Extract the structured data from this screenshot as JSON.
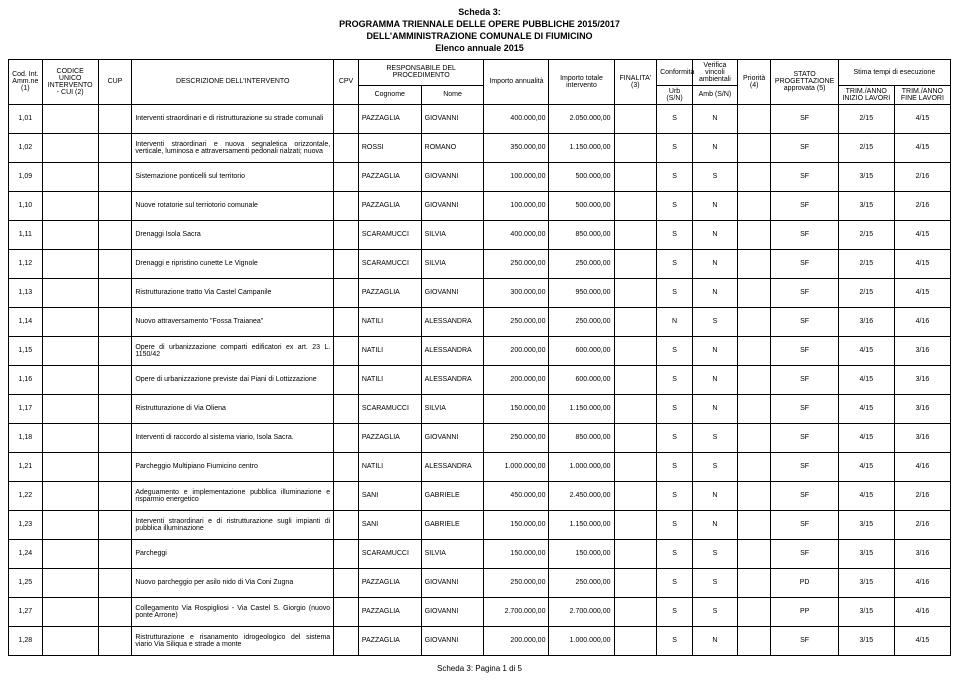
{
  "title": {
    "l1": "Scheda 3:",
    "l2": "PROGRAMMA TRIENNALE DELLE OPERE PUBBLICHE 2015/2017",
    "l3": "DELL'AMMINISTRAZIONE COMUNALE DI FIUMICINO",
    "l4": "Elenco annuale 2015"
  },
  "headers": {
    "cod": "Cod. Int. Amm.ne (1)",
    "unico": "CODICE UNICO INTERVENTO - CUI (2)",
    "cup": "CUP",
    "desc": "DESCRIZIONE DELL'INTERVENTO",
    "cpv": "CPV",
    "resp": "RESPONSABILE DEL PROCEDIMENTO",
    "cognome": "Cognome",
    "nome": "Nome",
    "ann": "Importo annualità",
    "tot": "Importo totale intervento",
    "fin": "FINALITA' (3)",
    "conf": "Conformità",
    "urb": "Urb (S/N)",
    "amb": "Amb (S/N)",
    "ver": "Verifica vincoli ambientali",
    "pri": "Priorità (4)",
    "stato": "STATO PROGETTAZIONE approvata (5)",
    "stima": "Stima tempi di esecuzione",
    "inizio": "TRIM./ANNO INIZIO LAVORI",
    "fine": "TRIM./ANNO FINE LAVORI"
  },
  "rows": [
    {
      "cod": "1,01",
      "desc": "Interventi straordinari e di ristrutturazione su strade comunali",
      "cog": "PAZZAGLIA",
      "nom": "GIOVANNI",
      "ann": "400.000,00",
      "tot": "2.050.000,00",
      "urb": "S",
      "amb": "N",
      "sta": "SF",
      "ini": "2/15",
      "fin": "4/15"
    },
    {
      "cod": "1,02",
      "desc": "Interventi straordinari e nuova segnaletica orizzontale, verticale, luminosa e attraversamenti pedonali rialzati; nuova",
      "cog": "ROSSI",
      "nom": "ROMANO",
      "ann": "350.000,00",
      "tot": "1.150.000,00",
      "urb": "S",
      "amb": "N",
      "sta": "SF",
      "ini": "2/15",
      "fin": "4/15"
    },
    {
      "cod": "1,09",
      "desc": "Sistemazione ponticelli sul territorio",
      "cog": "PAZZAGLIA",
      "nom": "GIOVANNI",
      "ann": "100.000,00",
      "tot": "500.000,00",
      "urb": "S",
      "amb": "S",
      "sta": "SF",
      "ini": "3/15",
      "fin": "2/16"
    },
    {
      "cod": "1,10",
      "desc": "Nuove rotatorie sul terriotorio comunale",
      "cog": "PAZZAGLIA",
      "nom": "GIOVANNI",
      "ann": "100.000,00",
      "tot": "500.000,00",
      "urb": "S",
      "amb": "N",
      "sta": "SF",
      "ini": "3/15",
      "fin": "2/16"
    },
    {
      "cod": "1,11",
      "desc": "Drenaggi Isola Sacra",
      "cog": "SCARAMUCCI",
      "nom": "SILVIA",
      "ann": "400.000,00",
      "tot": "850.000,00",
      "urb": "S",
      "amb": "N",
      "sta": "SF",
      "ini": "2/15",
      "fin": "4/15"
    },
    {
      "cod": "1,12",
      "desc": "Drenaggi e ripristino cunette Le Vignole",
      "cog": "SCARAMUCCI",
      "nom": "SILVIA",
      "ann": "250.000,00",
      "tot": "250.000,00",
      "urb": "S",
      "amb": "N",
      "sta": "SF",
      "ini": "2/15",
      "fin": "4/15"
    },
    {
      "cod": "1,13",
      "desc": "Ristrutturazione tratto Via Castel Campanile",
      "cog": "PAZZAGLIA",
      "nom": "GIOVANNI",
      "ann": "300.000,00",
      "tot": "950.000,00",
      "urb": "S",
      "amb": "N",
      "sta": "SF",
      "ini": "2/15",
      "fin": "4/15"
    },
    {
      "cod": "1,14",
      "desc": "Nuovo attraversamento \"Fossa Traianea\"",
      "cog": "NATILI",
      "nom": "ALESSANDRA",
      "ann": "250.000,00",
      "tot": "250.000,00",
      "urb": "N",
      "amb": "S",
      "sta": "SF",
      "ini": "3/16",
      "fin": "4/16"
    },
    {
      "cod": "1,15",
      "desc": "Opere di urbanizzazione comparti edificatori ex art. 23 L. 1150/42",
      "cog": "NATILI",
      "nom": "ALESSANDRA",
      "ann": "200.000,00",
      "tot": "600.000,00",
      "urb": "S",
      "amb": "N",
      "sta": "SF",
      "ini": "4/15",
      "fin": "3/16"
    },
    {
      "cod": "1,16",
      "desc": "Opere di urbanizzazione previste dai Piani di Lottizzazione",
      "cog": "NATILI",
      "nom": "ALESSANDRA",
      "ann": "200.000,00",
      "tot": "600.000,00",
      "urb": "S",
      "amb": "N",
      "sta": "SF",
      "ini": "4/15",
      "fin": "3/16"
    },
    {
      "cod": "1,17",
      "desc": "Ristrutturazione di Via Oliena",
      "cog": "SCARAMUCCI",
      "nom": "SILVIA",
      "ann": "150.000,00",
      "tot": "1.150.000,00",
      "urb": "S",
      "amb": "N",
      "sta": "SF",
      "ini": "4/15",
      "fin": "3/16"
    },
    {
      "cod": "1,18",
      "desc": "Interventi di raccordo al sistema viario, Isola Sacra.",
      "cog": "PAZZAGLIA",
      "nom": "GIOVANNI",
      "ann": "250.000,00",
      "tot": "850.000,00",
      "urb": "S",
      "amb": "S",
      "sta": "SF",
      "ini": "4/15",
      "fin": "3/16"
    },
    {
      "cod": "1,21",
      "desc": "Parcheggio Multipiano Fiumicino centro",
      "cog": "NATILI",
      "nom": "ALESSANDRA",
      "ann": "1.000.000,00",
      "tot": "1.000.000,00",
      "urb": "S",
      "amb": "S",
      "sta": "SF",
      "ini": "4/15",
      "fin": "4/16"
    },
    {
      "cod": "1,22",
      "desc": "Adeguamento e implementazione pubblica illuminazione e risparmio energetico",
      "cog": "SANI",
      "nom": "GABRIELE",
      "ann": "450.000,00",
      "tot": "2.450.000,00",
      "urb": "S",
      "amb": "N",
      "sta": "SF",
      "ini": "4/15",
      "fin": "2/16"
    },
    {
      "cod": "1,23",
      "desc": "Interventi straordinari e di ristrutturazione sugli impianti di pubblica illuminazione",
      "cog": "SANI",
      "nom": "GABRIELE",
      "ann": "150.000,00",
      "tot": "1.150.000,00",
      "urb": "S",
      "amb": "N",
      "sta": "SF",
      "ini": "3/15",
      "fin": "2/16"
    },
    {
      "cod": "1,24",
      "desc": "Parcheggi",
      "cog": "SCARAMUCCI",
      "nom": "SILVIA",
      "ann": "150.000,00",
      "tot": "150.000,00",
      "urb": "S",
      "amb": "S",
      "sta": "SF",
      "ini": "3/15",
      "fin": "3/16"
    },
    {
      "cod": "1,25",
      "desc": "Nuovo parcheggio per asilo nido di Via Coni Zugna",
      "cog": "PAZZAGLIA",
      "nom": "GIOVANNI",
      "ann": "250.000,00",
      "tot": "250.000,00",
      "urb": "S",
      "amb": "S",
      "sta": "PD",
      "ini": "3/15",
      "fin": "4/16"
    },
    {
      "cod": "1,27",
      "desc": "Collegamento Via Rospigliosi - Via Castel S. Giorgio (nuovo ponte Arrone)",
      "cog": "PAZZAGLIA",
      "nom": "GIOVANNI",
      "ann": "2.700.000,00",
      "tot": "2.700.000,00",
      "urb": "S",
      "amb": "S",
      "sta": "PP",
      "ini": "3/15",
      "fin": "4/16"
    },
    {
      "cod": "1,28",
      "desc": "Ristrutturazione e risanamento idrogeologico del sistema viario Via Siliqua e strade a monte",
      "cog": "PAZZAGLIA",
      "nom": "GIOVANNI",
      "ann": "200.000,00",
      "tot": "1.000.000,00",
      "urb": "S",
      "amb": "N",
      "sta": "SF",
      "ini": "3/15",
      "fin": "4/15"
    }
  ],
  "footer": "Scheda 3: Pagina 1 di 5"
}
